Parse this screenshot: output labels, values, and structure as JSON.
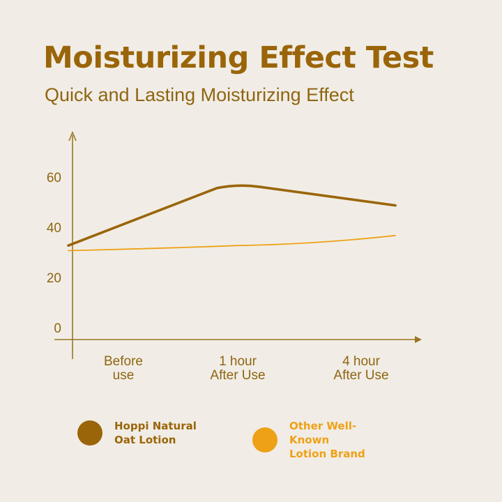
{
  "title": "Moisturizing Effect Test",
  "subtitle": "Quick and Lasting Moisturizing Effect",
  "colors": {
    "background": "#f1ede6",
    "axis": "#9a7424",
    "tick_text": "#8f6512"
  },
  "chart_data": {
    "type": "line",
    "title": "Moisturizing Effect Test",
    "subtitle": "Quick and Lasting Moisturizing Effect",
    "xlabel": "",
    "ylabel": "",
    "categories": [
      [
        "Before",
        "use"
      ],
      [
        "1 hour",
        "After Use"
      ],
      [
        "4 hour",
        "After Use"
      ]
    ],
    "yticks": [
      0,
      20,
      40,
      60
    ],
    "ylim": [
      0,
      60
    ],
    "grid": false,
    "legend_position": "bottom",
    "series": [
      {
        "name": "Hoppi Natural Oat Lotion",
        "label_lines": [
          "Hoppi Natural",
          "Oat Lotion"
        ],
        "color": "#9a6509",
        "values": [
          33,
          57,
          49
        ],
        "start_x": 0
      },
      {
        "name": "Other Well-Known Lotion Brand",
        "label_lines": [
          "Other Well-Known",
          "Lotion Brand"
        ],
        "color": "#eea116",
        "values": [
          31,
          33,
          37
        ],
        "start_x": 0
      }
    ]
  }
}
